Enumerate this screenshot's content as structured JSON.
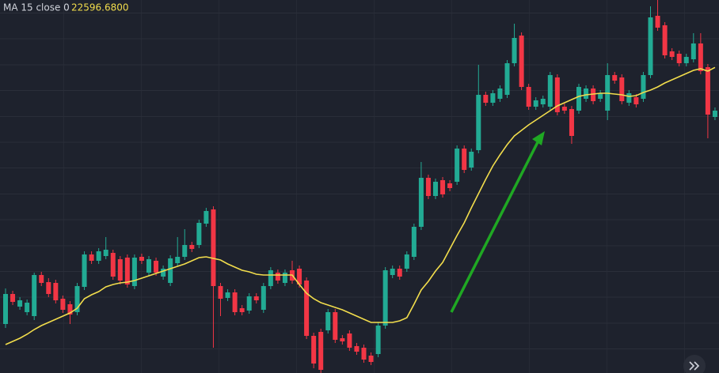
{
  "chart_data": {
    "type": "candlestick",
    "ylim": [
      22210,
      22682
    ],
    "up_color": "#22ab94",
    "down_color": "#f23645",
    "open": [
      22272,
      22310,
      22294,
      22287,
      22282,
      22334,
      22325,
      22324,
      22304,
      22297,
      22287,
      22319,
      22360,
      22352,
      22358,
      22362,
      22354,
      22356,
      22320,
      22357,
      22337,
      22352,
      22332,
      22324,
      22349,
      22357,
      22372,
      22372,
      22399,
      22417,
      22320,
      22305,
      22312,
      22292,
      22289,
      22307,
      22290,
      22320,
      22337,
      22324,
      22340,
      22342,
      22327,
      22257,
      22262,
      22264,
      22287,
      22254,
      22260,
      22244,
      22242,
      22232,
      22234,
      22270,
      22334,
      22342,
      22342,
      22357,
      22395,
      22457,
      22434,
      22454,
      22450,
      22452,
      22494,
      22470,
      22492,
      22562,
      22552,
      22557,
      22562,
      22602,
      22637,
      22572,
      22547,
      22550,
      22547,
      22584,
      22547,
      22544,
      22542,
      22557,
      22570,
      22557,
      22542,
      22587,
      22584,
      22552,
      22559,
      22557,
      22587,
      22662,
      22650,
      22617,
      22614,
      22602,
      22607,
      22627,
      22597,
      22534
    ],
    "high": [
      22317,
      22314,
      22306,
      22303,
      22337,
      22338,
      22330,
      22328,
      22308,
      22301,
      22324,
      22364,
      22364,
      22368,
      22382,
      22366,
      22358,
      22360,
      22360,
      22361,
      22358,
      22356,
      22346,
      22359,
      22382,
      22392,
      22376,
      22404,
      22419,
      22421,
      22324,
      22316,
      22316,
      22296,
      22311,
      22311,
      22324,
      22344,
      22341,
      22341,
      22352,
      22346,
      22331,
      22261,
      22266,
      22291,
      22291,
      22258,
      22264,
      22248,
      22246,
      22236,
      22274,
      22344,
      22346,
      22346,
      22364,
      22399,
      22477,
      22461,
      22456,
      22458,
      22454,
      22498,
      22498,
      22494,
      22600,
      22566,
      22568,
      22574,
      22606,
      22652,
      22641,
      22576,
      22559,
      22561,
      22591,
      22588,
      22551,
      22548,
      22576,
      22574,
      22574,
      22568,
      22602,
      22591,
      22588,
      22568,
      22563,
      22591,
      22674,
      22682,
      22654,
      22621,
      22618,
      22614,
      22640,
      22640,
      22601,
      22546
    ],
    "low": [
      22267,
      22296,
      22290,
      22283,
      22277,
      22320,
      22306,
      22298,
      22286,
      22272,
      22283,
      22315,
      22348,
      22348,
      22354,
      22328,
      22322,
      22318,
      22316,
      22348,
      22333,
      22333,
      22328,
      22320,
      22345,
      22353,
      22363,
      22368,
      22395,
      22242,
      22282,
      22301,
      22283,
      22283,
      22285,
      22298,
      22286,
      22316,
      22323,
      22320,
      22323,
      22318,
      22253,
      22216,
      22210,
      22260,
      22248,
      22246,
      22238,
      22233,
      22223,
      22220,
      22230,
      22266,
      22330,
      22328,
      22338,
      22353,
      22391,
      22430,
      22430,
      22432,
      22440,
      22448,
      22463,
      22466,
      22488,
      22548,
      22548,
      22553,
      22558,
      22598,
      22568,
      22543,
      22543,
      22546,
      22543,
      22536,
      22538,
      22500,
      22538,
      22553,
      22550,
      22553,
      22530,
      22576,
      22550,
      22548,
      22546,
      22553,
      22583,
      22643,
      22608,
      22606,
      22598,
      22598,
      22603,
      22588,
      22507,
      22530
    ],
    "close": [
      22310,
      22300,
      22302,
      22299,
      22334,
      22324,
      22310,
      22302,
      22290,
      22284,
      22320,
      22360,
      22352,
      22364,
      22366,
      22332,
      22327,
      22322,
      22356,
      22352,
      22354,
      22337,
      22342,
      22355,
      22357,
      22372,
      22367,
      22400,
      22415,
      22320,
      22304,
      22312,
      22287,
      22287,
      22307,
      22302,
      22320,
      22340,
      22327,
      22337,
      22327,
      22322,
      22257,
      22222,
      22214,
      22287,
      22252,
      22250,
      22242,
      22237,
      22227,
      22224,
      22270,
      22340,
      22342,
      22332,
      22360,
      22395,
      22457,
      22434,
      22452,
      22436,
      22444,
      22494,
      22467,
      22490,
      22562,
      22552,
      22564,
      22570,
      22602,
      22634,
      22572,
      22547,
      22555,
      22557,
      22587,
      22540,
      22542,
      22510,
      22572,
      22570,
      22554,
      22564,
      22587,
      22580,
      22554,
      22564,
      22550,
      22587,
      22660,
      22647,
      22612,
      22610,
      22602,
      22610,
      22627,
      22592,
      22537,
      22542
    ],
    "ma": {
      "name": "MA 15 close 0",
      "color": "#f2dd4c",
      "values": [
        22246,
        22250,
        22254,
        22259,
        22265,
        22270,
        22274,
        22278,
        22282,
        22286,
        22292,
        22304,
        22309,
        22313,
        22319,
        22322,
        22324,
        22325,
        22327,
        22330,
        22333,
        22336,
        22339,
        22342,
        22345,
        22348,
        22352,
        22356,
        22357,
        22355,
        22353,
        22348,
        22344,
        22340,
        22338,
        22335,
        22334,
        22334,
        22334,
        22334,
        22334,
        22322,
        22311,
        22304,
        22299,
        22296,
        22293,
        22290,
        22286,
        22282,
        22278,
        22274,
        22274,
        22274,
        22274,
        22276,
        22280,
        22297,
        22315,
        22326,
        22339,
        22350,
        22367,
        22384,
        22400,
        22419,
        22437,
        22455,
        22472,
        22486,
        22499,
        22510,
        22517,
        22524,
        22530,
        22536,
        22542,
        22548,
        22552,
        22556,
        22560,
        22562,
        22563,
        22564,
        22564,
        22563,
        22562,
        22560,
        22561,
        22565,
        22568,
        22572,
        22577,
        22581,
        22585,
        22589,
        22593,
        22595,
        22592,
        22596.68
      ],
      "value_labels": [
        null,
        null,
        null,
        null,
        null,
        null,
        null,
        null,
        null,
        null,
        null,
        null,
        null,
        null,
        null,
        null,
        null,
        null,
        null,
        null,
        null,
        null,
        null,
        null,
        null,
        null,
        null,
        null,
        null,
        null,
        null,
        null,
        null,
        null,
        null,
        null,
        null,
        null,
        null,
        null,
        null,
        null,
        null,
        null,
        null,
        null,
        null,
        null,
        null,
        null,
        null,
        null,
        null,
        null,
        null,
        null,
        null,
        null,
        null,
        null,
        null,
        null,
        null,
        null,
        null,
        null,
        null,
        null,
        null,
        null,
        null,
        null,
        null,
        null,
        null,
        null,
        null,
        null,
        null,
        null,
        null,
        null,
        null,
        null,
        null,
        null,
        null,
        null,
        null,
        null,
        null,
        null,
        null,
        null,
        null,
        null,
        null,
        null,
        null,
        "22596.6800"
      ]
    }
  }
}
